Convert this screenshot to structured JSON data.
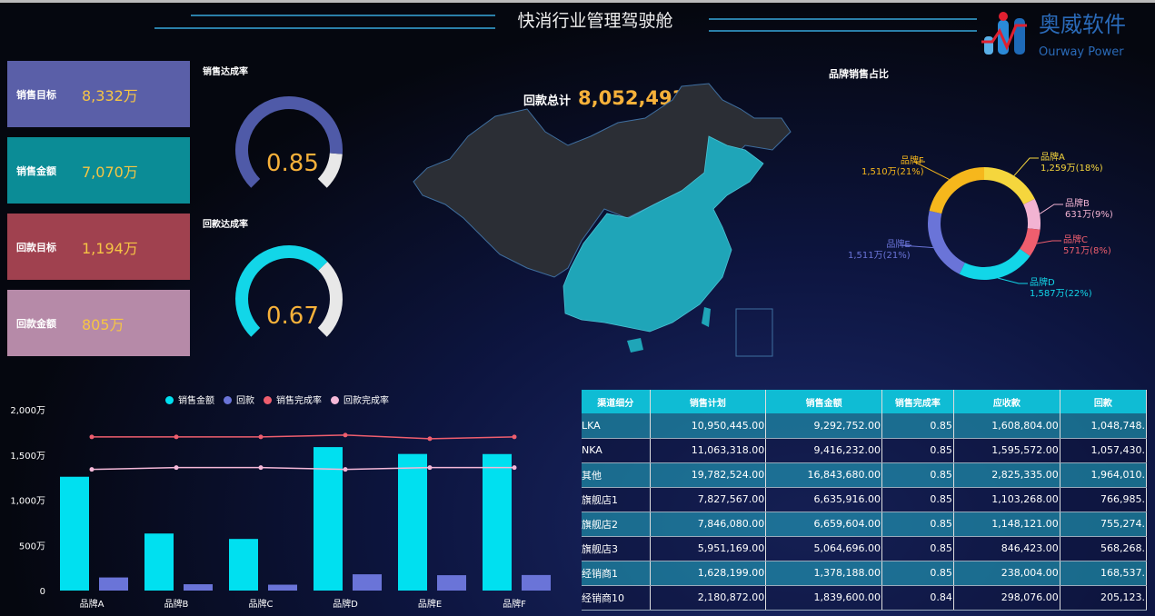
{
  "header": {
    "title": "快消行业管理驾驶舱",
    "logo_cn": "奥威软件",
    "logo_en": "Ourway Power"
  },
  "kpis": [
    {
      "label": "销售目标",
      "value": "8,332万",
      "color": "#5a5fa8"
    },
    {
      "label": "销售金额",
      "value": "7,070万",
      "color": "#0b8c96"
    },
    {
      "label": "回款目标",
      "value": "1,194万",
      "color": "#a0414f"
    },
    {
      "label": "回款金额",
      "value": "805万",
      "color": "#b68aa8"
    }
  ],
  "gauges": [
    {
      "label": "销售达成率",
      "value": "0.85",
      "fraction": 0.85,
      "color": "#4f5aa8"
    },
    {
      "label": "回款达成率",
      "value": "0.67",
      "fraction": 0.67,
      "color": "#12d6e8"
    }
  ],
  "map": {
    "total_label": "回款总计",
    "total_value": "8,052,493",
    "highlight_color": "#1fa5b8",
    "base_color": "#2b2e35"
  },
  "pie": {
    "title": "品牌销售占比",
    "slices": [
      {
        "name": "品牌A",
        "value": 1259,
        "label": "1,259万(18%)",
        "color": "#f5d63d"
      },
      {
        "name": "品牌B",
        "value": 631,
        "label": "631万(9%)",
        "color": "#f2b3d2"
      },
      {
        "name": "品牌C",
        "value": 571,
        "label": "571万(8%)",
        "color": "#ef5e6e"
      },
      {
        "name": "品牌D",
        "value": 1587,
        "label": "1,587万(22%)",
        "color": "#12d6e8"
      },
      {
        "name": "品牌E",
        "value": 1511,
        "label": "1,511万(21%)",
        "color": "#6a74d8"
      },
      {
        "name": "品牌F",
        "value": 1510,
        "label": "1,510万(21%)",
        "color": "#f6b71c"
      }
    ]
  },
  "chart_data": {
    "type": "bar",
    "categories": [
      "品牌A",
      "品牌B",
      "品牌C",
      "品牌D",
      "品牌E",
      "品牌F"
    ],
    "y_ticks": [
      "0",
      "500万",
      "1,000万",
      "1,500万",
      "2,000万"
    ],
    "ylim": [
      0,
      2000
    ],
    "y2lim": [
      0,
      1
    ],
    "legend_position": "top",
    "series": [
      {
        "name": "销售金额",
        "type": "bar",
        "color": "#00e0f0",
        "values": [
          1259,
          631,
          571,
          1587,
          1511,
          1510
        ]
      },
      {
        "name": "回款",
        "type": "bar",
        "color": "#6a74d8",
        "values": [
          145,
          70,
          65,
          180,
          170,
          172
        ]
      },
      {
        "name": "销售完成率",
        "type": "line",
        "axis": "right",
        "color": "#ef5e6e",
        "values": [
          0.85,
          0.85,
          0.85,
          0.86,
          0.84,
          0.85
        ]
      },
      {
        "name": "回款完成率",
        "type": "line",
        "axis": "right",
        "color": "#f4b8d8",
        "values": [
          0.67,
          0.68,
          0.68,
          0.67,
          0.68,
          0.68
        ]
      }
    ]
  },
  "table": {
    "headers": [
      "渠道细分",
      "销售计划",
      "销售金额",
      "销售完成率",
      "应收款",
      "回款"
    ],
    "rows": [
      [
        "LKA",
        "10,950,445.00",
        "9,292,752.00",
        "0.85",
        "1,608,804.00",
        "1,048,748."
      ],
      [
        "NKA",
        "11,063,318.00",
        "9,416,232.00",
        "0.85",
        "1,595,572.00",
        "1,057,430."
      ],
      [
        "其他",
        "19,782,524.00",
        "16,843,680.00",
        "0.85",
        "2,825,335.00",
        "1,964,010."
      ],
      [
        "旗舰店1",
        "7,827,567.00",
        "6,635,916.00",
        "0.85",
        "1,103,268.00",
        "766,985."
      ],
      [
        "旗舰店2",
        "7,846,080.00",
        "6,659,604.00",
        "0.85",
        "1,148,121.00",
        "755,274."
      ],
      [
        "旗舰店3",
        "5,951,169.00",
        "5,064,696.00",
        "0.85",
        "846,423.00",
        "568,268."
      ],
      [
        "经销商1",
        "1,628,199.00",
        "1,378,188.00",
        "0.85",
        "238,004.00",
        "168,537."
      ],
      [
        "经销商10",
        "2,180,872.00",
        "1,839,600.00",
        "0.84",
        "298,076.00",
        "205,123."
      ]
    ]
  }
}
